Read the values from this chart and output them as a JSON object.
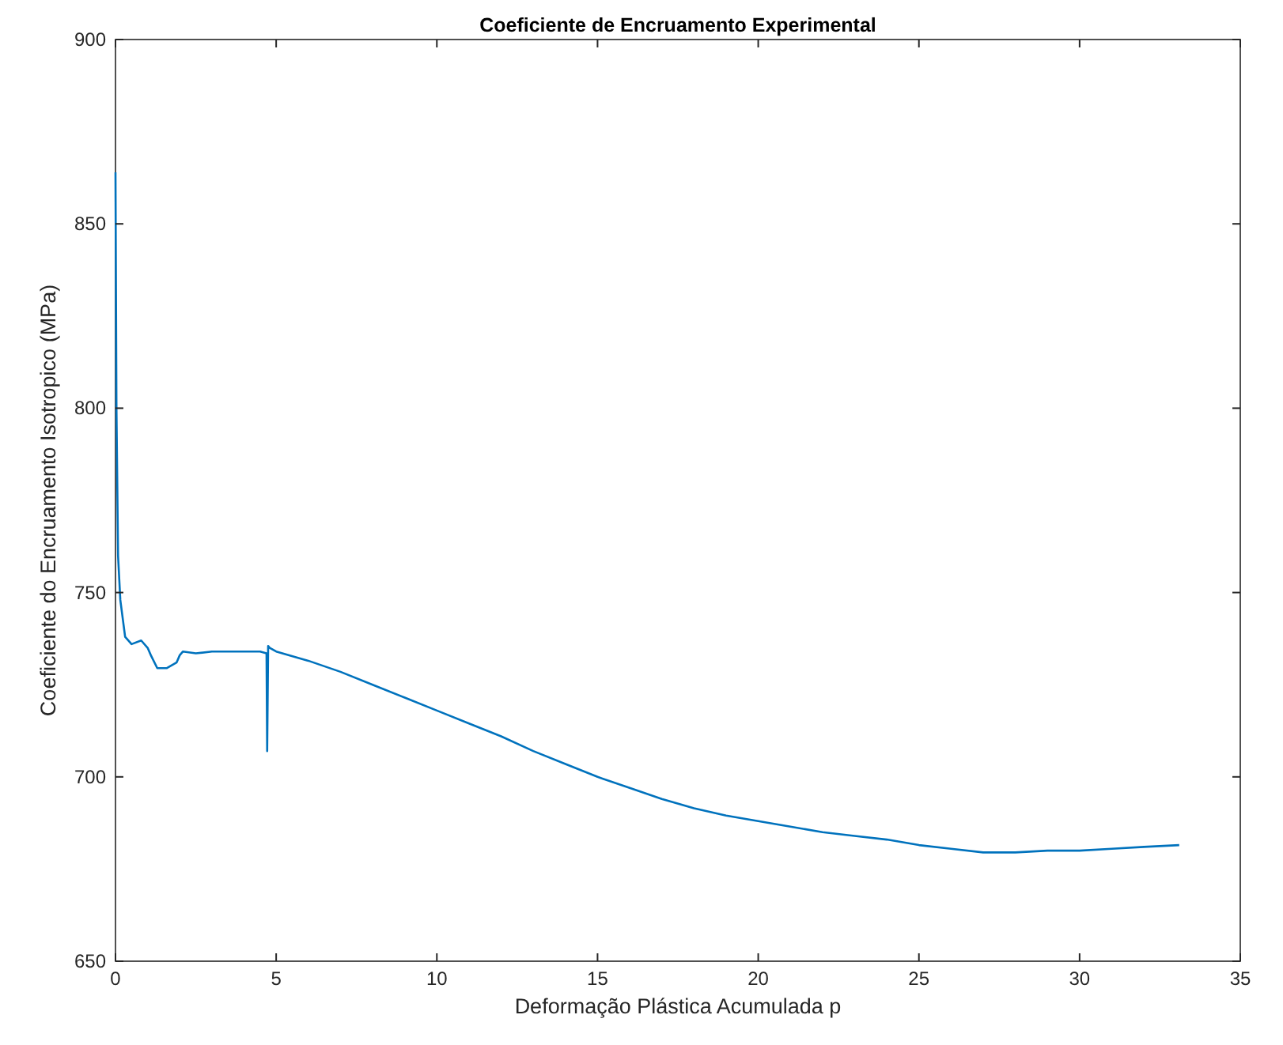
{
  "chart_data": {
    "type": "line",
    "title": "Coeficiente de Encruamento Experimental",
    "xlabel": "Deformação Plástica Acumulada p",
    "ylabel": "Coeficiente do Encruamento Isotropico (MPa)",
    "xlim": [
      0,
      35
    ],
    "xticks": [
      0,
      5,
      10,
      15,
      20,
      25,
      30,
      35
    ],
    "ylim": [
      650,
      900
    ],
    "yticks": [
      650,
      700,
      750,
      800,
      850,
      900
    ],
    "grid": false,
    "line_style": "solid",
    "series": [
      {
        "color": "#0072bd",
        "x": [
          0,
          0.03,
          0.08,
          0.15,
          0.3,
          0.5,
          0.8,
          1.0,
          1.1,
          1.3,
          1.6,
          1.9,
          2.0,
          2.1,
          2.5,
          3,
          3.5,
          4,
          4.5,
          4.7,
          4.72,
          4.75,
          4.8,
          5,
          6,
          7,
          8,
          9,
          10,
          11,
          12,
          13,
          14,
          15,
          16,
          17,
          18,
          19,
          20,
          21,
          22,
          23,
          24,
          25,
          26,
          27,
          27.5,
          28,
          29,
          30,
          31,
          32,
          33.1
        ],
        "values": [
          864,
          800,
          760,
          748,
          738,
          736,
          737,
          735,
          733,
          729.5,
          729.5,
          731,
          733,
          734,
          733.5,
          734,
          734,
          734,
          734,
          733.5,
          707,
          735.5,
          735,
          734,
          731.5,
          728.5,
          725,
          721.5,
          718,
          714.5,
          711,
          707,
          703.5,
          700,
          697,
          694,
          691.5,
          689.5,
          688,
          686.5,
          685,
          684,
          683,
          681.5,
          680.5,
          679.5,
          679.5,
          679.5,
          680,
          680,
          680.5,
          681,
          681.5
        ]
      }
    ]
  }
}
